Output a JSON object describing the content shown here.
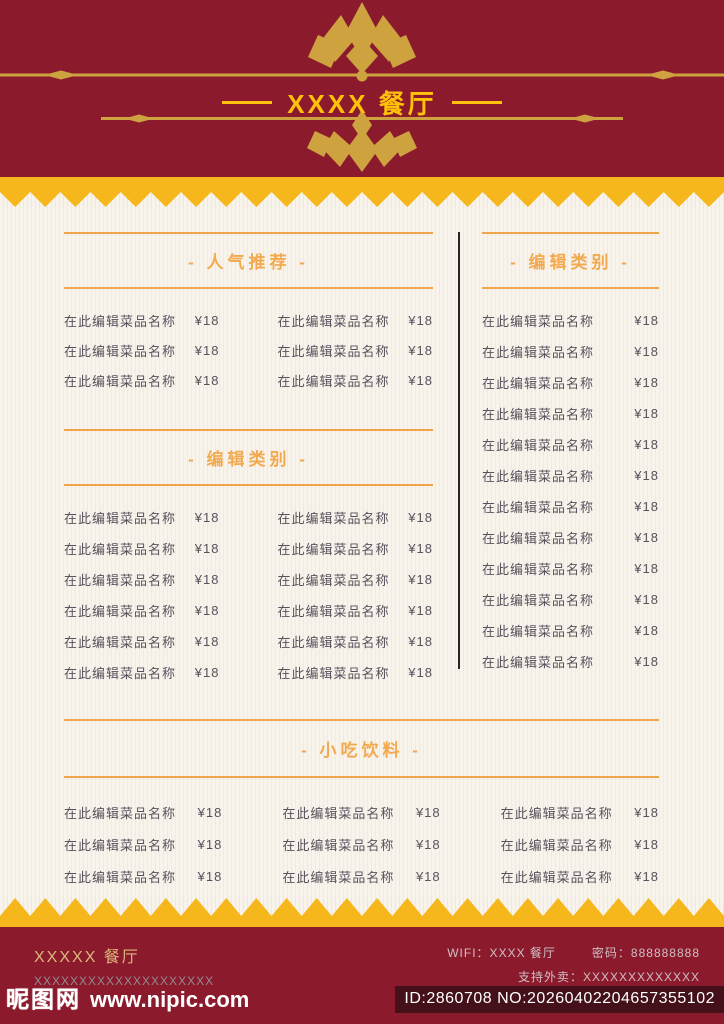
{
  "header": {
    "title": "XXXX 餐厅"
  },
  "menu": {
    "popular": {
      "title": "- 人气推荐 -",
      "items": [
        {
          "name": "在此编辑菜品名称",
          "price": "¥18"
        },
        {
          "name": "在此编辑菜品名称",
          "price": "¥18"
        },
        {
          "name": "在此编辑菜品名称",
          "price": "¥18"
        },
        {
          "name": "在此编辑菜品名称",
          "price": "¥18"
        },
        {
          "name": "在此编辑菜品名称",
          "price": "¥18"
        },
        {
          "name": "在此编辑菜品名称",
          "price": "¥18"
        }
      ]
    },
    "category_left": {
      "title": "- 编辑类别 -",
      "items": [
        {
          "name": "在此编辑菜品名称",
          "price": "¥18"
        },
        {
          "name": "在此编辑菜品名称",
          "price": "¥18"
        },
        {
          "name": "在此编辑菜品名称",
          "price": "¥18"
        },
        {
          "name": "在此编辑菜品名称",
          "price": "¥18"
        },
        {
          "name": "在此编辑菜品名称",
          "price": "¥18"
        },
        {
          "name": "在此编辑菜品名称",
          "price": "¥18"
        },
        {
          "name": "在此编辑菜品名称",
          "price": "¥18"
        },
        {
          "name": "在此编辑菜品名称",
          "price": "¥18"
        },
        {
          "name": "在此编辑菜品名称",
          "price": "¥18"
        },
        {
          "name": "在此编辑菜品名称",
          "price": "¥18"
        },
        {
          "name": "在此编辑菜品名称",
          "price": "¥18"
        },
        {
          "name": "在此编辑菜品名称",
          "price": "¥18"
        }
      ]
    },
    "category_right": {
      "title": "- 编辑类别 -",
      "items": [
        {
          "name": "在此编辑菜品名称",
          "price": "¥18"
        },
        {
          "name": "在此编辑菜品名称",
          "price": "¥18"
        },
        {
          "name": "在此编辑菜品名称",
          "price": "¥18"
        },
        {
          "name": "在此编辑菜品名称",
          "price": "¥18"
        },
        {
          "name": "在此编辑菜品名称",
          "price": "¥18"
        },
        {
          "name": "在此编辑菜品名称",
          "price": "¥18"
        },
        {
          "name": "在此编辑菜品名称",
          "price": "¥18"
        },
        {
          "name": "在此编辑菜品名称",
          "price": "¥18"
        },
        {
          "name": "在此编辑菜品名称",
          "price": "¥18"
        },
        {
          "name": "在此编辑菜品名称",
          "price": "¥18"
        },
        {
          "name": "在此编辑菜品名称",
          "price": "¥18"
        },
        {
          "name": "在此编辑菜品名称",
          "price": "¥18"
        }
      ]
    },
    "snacks": {
      "title": "- 小吃饮料 -",
      "items": [
        {
          "name": "在此编辑菜品名称",
          "price": "¥18"
        },
        {
          "name": "在此编辑菜品名称",
          "price": "¥18"
        },
        {
          "name": "在此编辑菜品名称",
          "price": "¥18"
        },
        {
          "name": "在此编辑菜品名称",
          "price": "¥18"
        },
        {
          "name": "在此编辑菜品名称",
          "price": "¥18"
        },
        {
          "name": "在此编辑菜品名称",
          "price": "¥18"
        },
        {
          "name": "在此编辑菜品名称",
          "price": "¥18"
        },
        {
          "name": "在此编辑菜品名称",
          "price": "¥18"
        },
        {
          "name": "在此编辑菜品名称",
          "price": "¥18"
        }
      ]
    }
  },
  "footer": {
    "restaurant_name": "XXXXX 餐厅",
    "address": "XXXXXXXXXXXXXXXXXXXX",
    "wifi": "WIFI：XXXX 餐厅",
    "password": "密码：888888888",
    "delivery": "支持外卖：XXXXXXXXXXXXX"
  },
  "watermark": {
    "site_name": "昵图网",
    "site_url": "www.nipic.com",
    "id_text": "ID:2860708 NO:20260402204657355102"
  },
  "colors": {
    "header_red": "#8C1A2D",
    "band_yellow": "#F5B71B",
    "ornament_gold": "#CDA23F",
    "title_yellow": "#FFC10A",
    "accent_orange": "#F0A44C",
    "cream": "#F8F4EC",
    "item_text": "#57525C"
  }
}
